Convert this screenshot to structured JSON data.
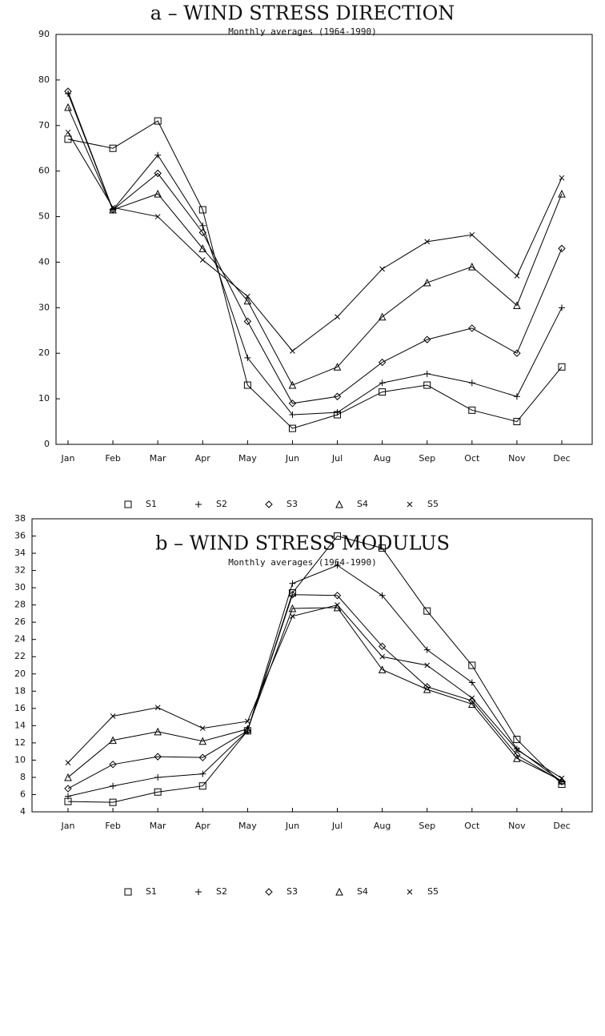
{
  "chart_data": [
    {
      "type": "line",
      "title": "a – WIND STRESS DIRECTION",
      "subtitle": "Monthly averages (1964-1990)",
      "categories": [
        "Jan",
        "Feb",
        "Mar",
        "Apr",
        "May",
        "Jun",
        "Jul",
        "Aug",
        "Sep",
        "Oct",
        "Nov",
        "Dec"
      ],
      "ylim": [
        0,
        90
      ],
      "yticks": [
        0,
        10,
        20,
        30,
        40,
        50,
        60,
        70,
        80,
        90
      ],
      "legend": "bottom",
      "series": [
        {
          "name": "S1",
          "color": "#000000",
          "marker": "square",
          "values": [
            67,
            65,
            71,
            51.5,
            13,
            3.5,
            6.5,
            11.5,
            13,
            7.5,
            5,
            17
          ]
        },
        {
          "name": "S2",
          "color": "#000000",
          "marker": "plus",
          "values": [
            77,
            51.5,
            63.5,
            48,
            19,
            6.5,
            7,
            13.5,
            15.5,
            13.5,
            10.5,
            30
          ]
        },
        {
          "name": "S3",
          "color": "#000000",
          "marker": "diamond",
          "values": [
            77.5,
            51.5,
            59.5,
            46.5,
            27,
            9,
            10.5,
            18,
            23,
            25.5,
            20,
            43
          ]
        },
        {
          "name": "S4",
          "color": "#000000",
          "marker": "triangle",
          "values": [
            74,
            51.5,
            55,
            43,
            31.5,
            13,
            17,
            28,
            35.5,
            39,
            30.5,
            55
          ]
        },
        {
          "name": "S5",
          "color": "#000000",
          "marker": "x",
          "values": [
            68.5,
            52,
            50,
            40.5,
            32.5,
            20.5,
            28,
            38.5,
            44.5,
            46,
            37,
            58.5
          ]
        }
      ]
    },
    {
      "type": "line",
      "title": "b – WIND STRESS MODULUS",
      "subtitle": "Monthly averages (1964-1990)",
      "categories": [
        "Jan",
        "Feb",
        "Mar",
        "Apr",
        "May",
        "Jun",
        "Jul",
        "Aug",
        "Sep",
        "Oct",
        "Nov",
        "Dec"
      ],
      "ylim": [
        4,
        38
      ],
      "yticks": [
        4,
        6,
        8,
        10,
        12,
        14,
        16,
        18,
        20,
        22,
        24,
        26,
        28,
        30,
        32,
        34,
        36,
        38
      ],
      "legend": "bottom",
      "series": [
        {
          "name": "S1",
          "color": "#000000",
          "marker": "square",
          "values": [
            5.2,
            5.1,
            6.3,
            7,
            13.4,
            29.4,
            36,
            34.6,
            27.3,
            21,
            12.4,
            7.2
          ]
        },
        {
          "name": "S2",
          "color": "#000000",
          "marker": "plus",
          "values": [
            5.8,
            7,
            8,
            8.4,
            13.4,
            30.5,
            32.6,
            29.1,
            22.8,
            19,
            11.3,
            7.5
          ]
        },
        {
          "name": "S3",
          "color": "#000000",
          "marker": "diamond",
          "values": [
            6.7,
            9.5,
            10.4,
            10.3,
            13.4,
            29.2,
            29.1,
            23.2,
            18.5,
            16.9,
            10.6,
            7.5
          ]
        },
        {
          "name": "S4",
          "color": "#000000",
          "marker": "triangle",
          "values": [
            8,
            12.3,
            13.3,
            12.2,
            13.6,
            27.6,
            27.7,
            20.5,
            18.2,
            16.5,
            10.2,
            7.6
          ]
        },
        {
          "name": "S5",
          "color": "#000000",
          "marker": "x",
          "values": [
            9.7,
            15.1,
            16.1,
            13.7,
            14.5,
            26.7,
            28,
            22,
            21,
            17.2,
            11.2,
            7.9
          ]
        }
      ]
    }
  ]
}
